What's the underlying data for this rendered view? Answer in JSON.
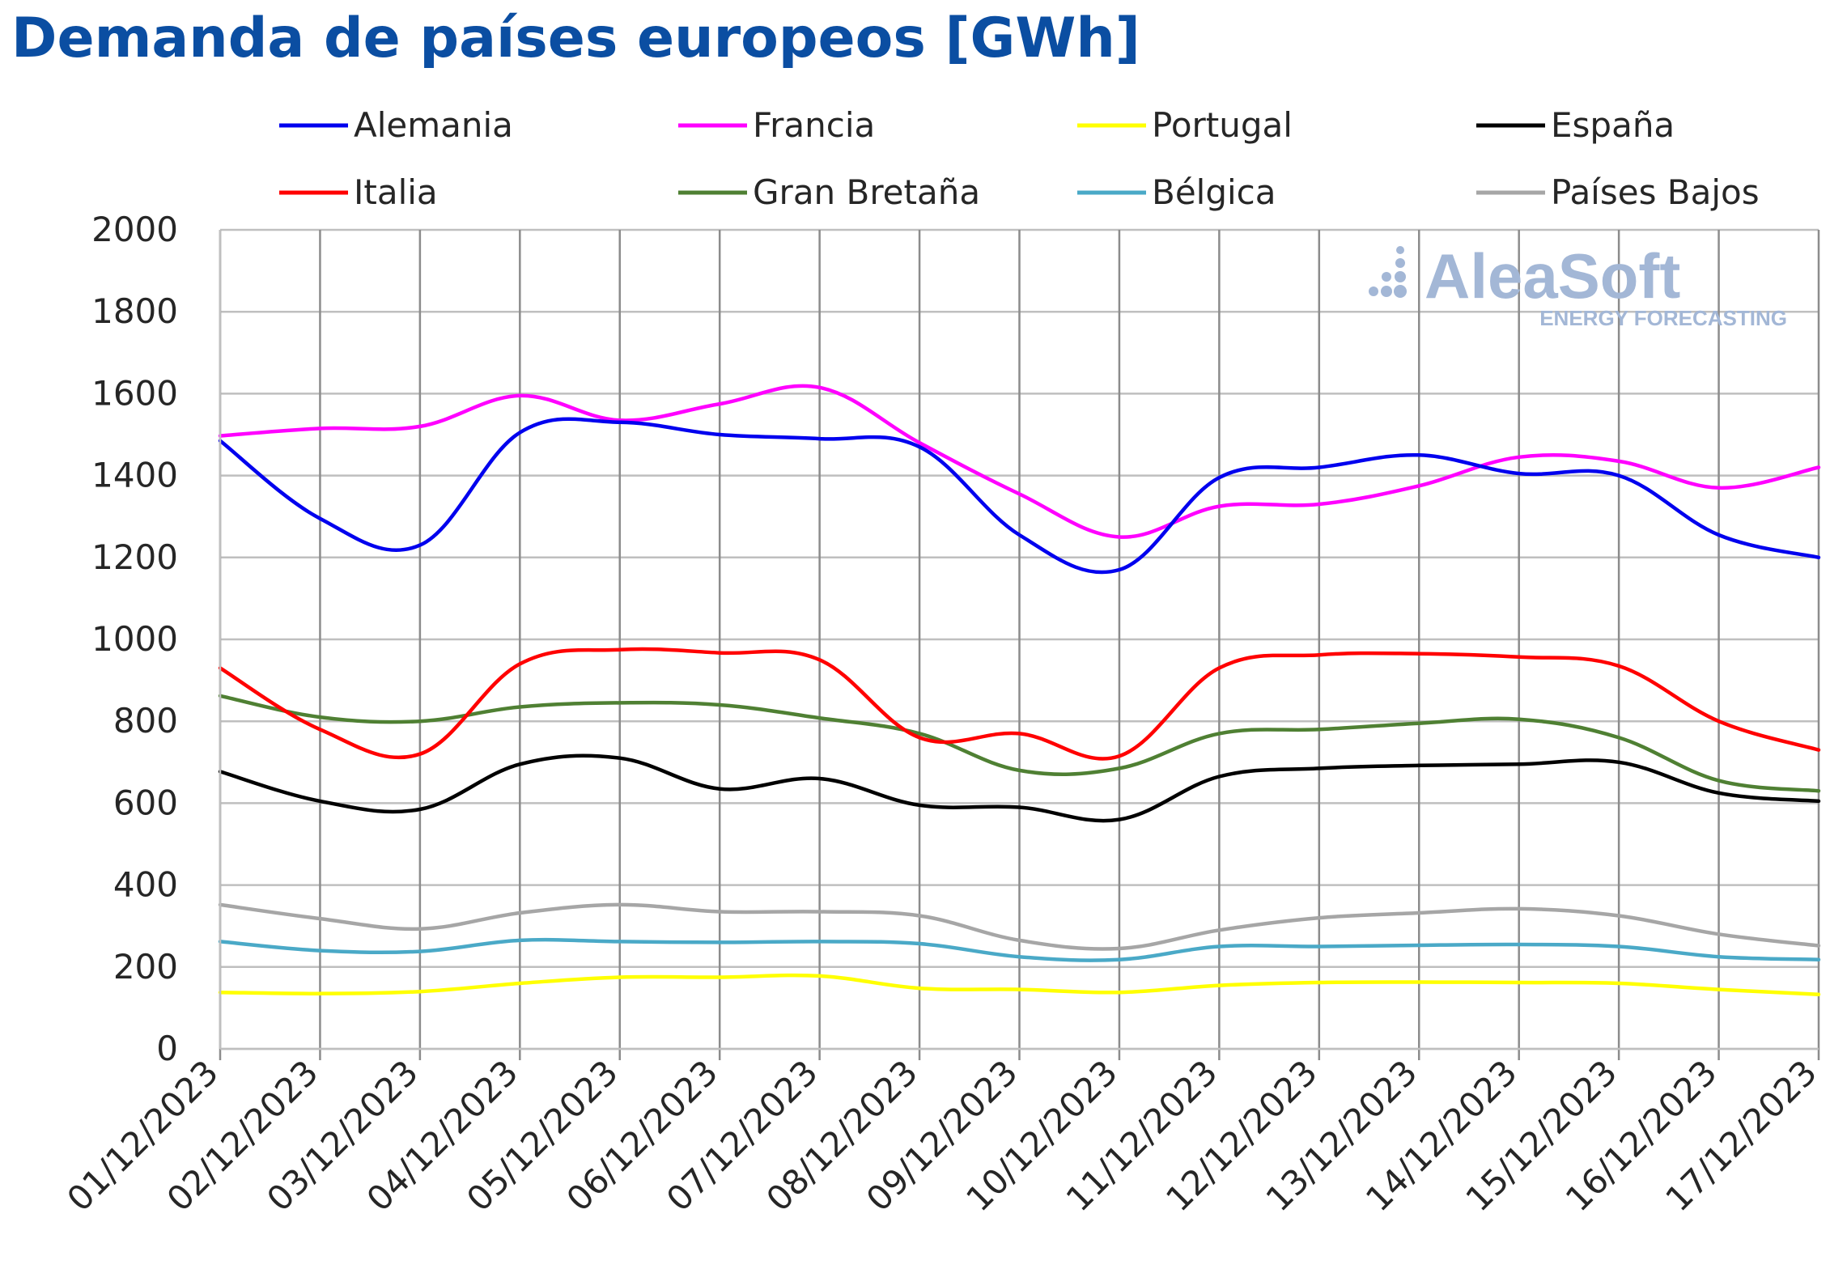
{
  "chart_data": {
    "type": "line",
    "title": "Demanda de países europeos [GWh]",
    "xlabel": "",
    "ylabel": "",
    "ylim": [
      0,
      2000
    ],
    "yticks": [
      0,
      200,
      400,
      600,
      800,
      1000,
      1200,
      1400,
      1600,
      1800,
      2000
    ],
    "grid": true,
    "legend_position": "top",
    "categories": [
      "01/12/2023",
      "02/12/2023",
      "03/12/2023",
      "04/12/2023",
      "05/12/2023",
      "06/12/2023",
      "07/12/2023",
      "08/12/2023",
      "09/12/2023",
      "10/12/2023",
      "11/12/2023",
      "12/12/2023",
      "13/12/2023",
      "14/12/2023",
      "15/12/2023",
      "16/12/2023",
      "17/12/2023"
    ],
    "series": [
      {
        "name": "Alemania",
        "color": "#0000ee",
        "values": [
          1485,
          1295,
          1230,
          1505,
          1530,
          1500,
          1490,
          1470,
          1255,
          1170,
          1395,
          1420,
          1450,
          1405,
          1400,
          1255,
          1200
        ]
      },
      {
        "name": "Francia",
        "color": "#ff00ff",
        "values": [
          1497,
          1515,
          1520,
          1595,
          1535,
          1575,
          1615,
          1480,
          1355,
          1250,
          1325,
          1330,
          1375,
          1445,
          1435,
          1370,
          1420
        ]
      },
      {
        "name": "Portugal",
        "color": "#ffff00",
        "values": [
          138,
          135,
          140,
          160,
          175,
          175,
          178,
          148,
          145,
          138,
          155,
          162,
          163,
          162,
          160,
          145,
          133
        ]
      },
      {
        "name": "España",
        "color": "#000000",
        "values": [
          677,
          605,
          585,
          695,
          710,
          635,
          660,
          595,
          590,
          560,
          665,
          685,
          692,
          695,
          700,
          625,
          605
        ]
      },
      {
        "name": "Italia",
        "color": "#ff0000",
        "values": [
          930,
          780,
          720,
          940,
          975,
          967,
          950,
          760,
          770,
          715,
          930,
          962,
          965,
          957,
          935,
          800,
          730
        ]
      },
      {
        "name": "Gran Bretaña",
        "color": "#4f8033",
        "values": [
          862,
          810,
          800,
          835,
          845,
          840,
          808,
          770,
          680,
          685,
          770,
          780,
          795,
          805,
          760,
          655,
          630
        ]
      },
      {
        "name": "Bélgica",
        "color": "#4aa9c7",
        "values": [
          262,
          240,
          238,
          265,
          262,
          260,
          262,
          257,
          225,
          218,
          250,
          250,
          253,
          255,
          250,
          225,
          218
        ]
      },
      {
        "name": "Países Bajos",
        "color": "#a6a6a6",
        "values": [
          352,
          318,
          293,
          332,
          352,
          335,
          335,
          325,
          265,
          245,
          290,
          320,
          332,
          342,
          325,
          280,
          252
        ]
      }
    ],
    "watermark": {
      "name": "AleaSoft",
      "tagline": "ENERGY FORECASTING",
      "color": "#a3b7d6"
    }
  }
}
